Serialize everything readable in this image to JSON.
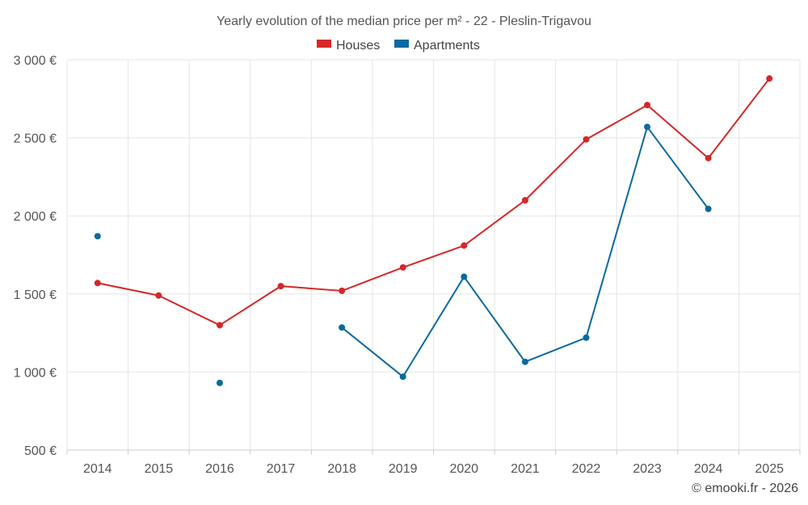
{
  "chart_data": {
    "type": "line",
    "title": "Yearly evolution of the median price per m² - 22 - Pleslin-Trigavou",
    "xlabel": "",
    "ylabel": "",
    "categories": [
      "2014",
      "2015",
      "2016",
      "2017",
      "2018",
      "2019",
      "2020",
      "2021",
      "2022",
      "2023",
      "2024",
      "2025"
    ],
    "ylim": [
      500,
      3000
    ],
    "yticks": [
      500,
      1000,
      1500,
      2000,
      2500,
      3000
    ],
    "ytick_labels": [
      "500 €",
      "1 000 €",
      "1 500 €",
      "2 000 €",
      "2 500 €",
      "3 000 €"
    ],
    "grid": true,
    "legend_position": "top-center",
    "series": [
      {
        "name": "Houses",
        "color": "#d62728",
        "values": [
          1570,
          1490,
          1300,
          1550,
          1520,
          1670,
          1810,
          2100,
          2490,
          2710,
          2370,
          2880
        ]
      },
      {
        "name": "Apartments",
        "color": "#0b6a9f",
        "values": [
          1870,
          null,
          930,
          null,
          1285,
          970,
          1610,
          1065,
          1220,
          2570,
          2045,
          null
        ]
      }
    ]
  },
  "credit": "© emooki.fr - 2026"
}
